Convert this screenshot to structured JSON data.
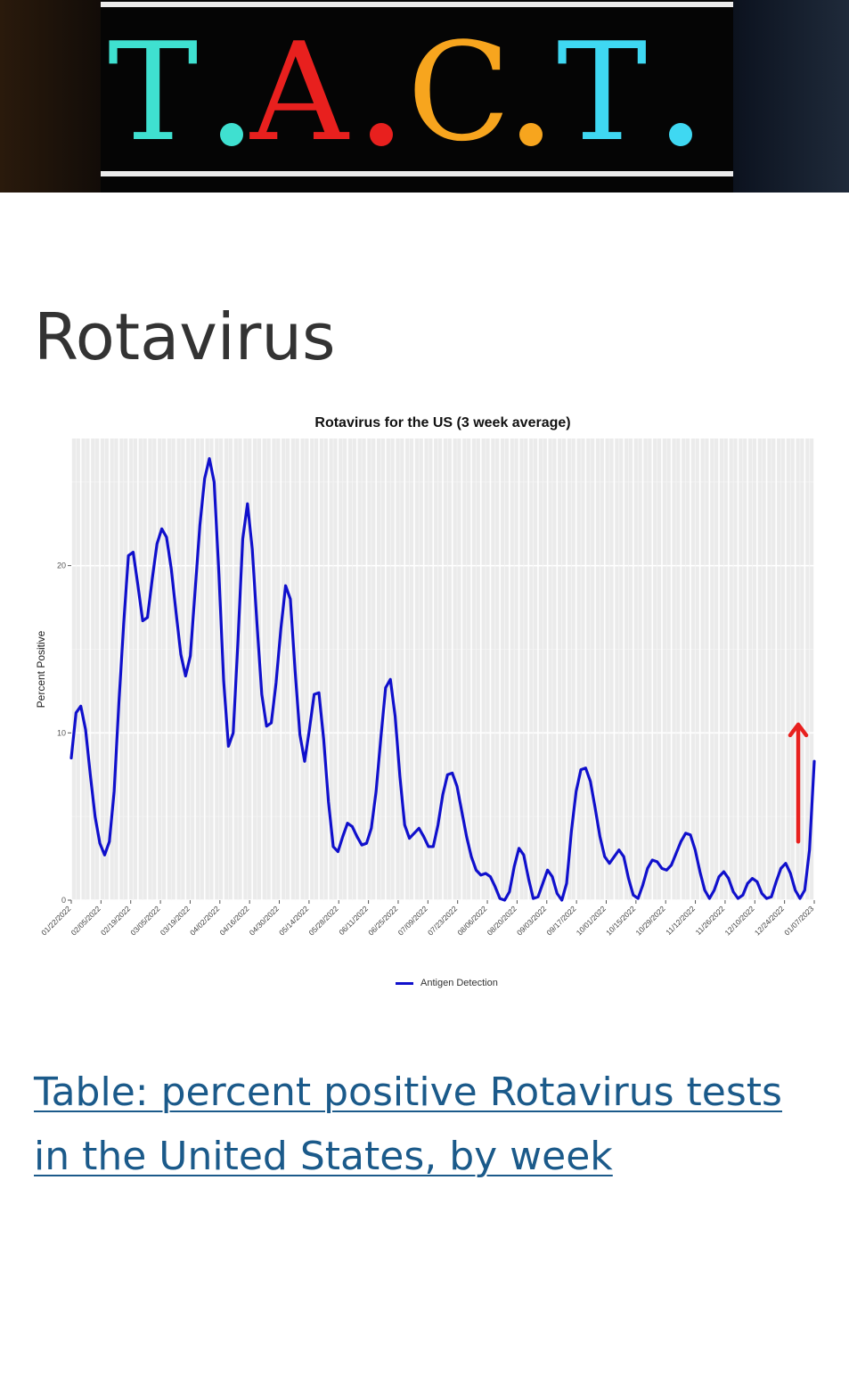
{
  "banner": {
    "logo_text": "T.A.C.T.",
    "letters": [
      {
        "char": "T",
        "color": "#3fe0d0"
      },
      {
        "char": "A",
        "color": "#e8201e"
      },
      {
        "char": "C",
        "color": "#f7a51e"
      },
      {
        "char": "T",
        "color": "#3fd8f2"
      }
    ],
    "dot_colors": [
      "#3fe0d0",
      "#e8201e",
      "#f7a51e",
      "#3fd8f2"
    ]
  },
  "heading": "Rotavirus",
  "chart_data": {
    "type": "line",
    "title": "Rotavirus for the US (3 week average)",
    "ylabel": "Percent Positive",
    "xlabel": "",
    "ylim": [
      0,
      27.6
    ],
    "y_ticks": [
      0,
      10,
      20
    ],
    "y_tick_labels": [
      "0",
      "10",
      "20"
    ],
    "x_tick_labels": [
      "01/22/2022",
      "02/05/2022",
      "02/19/2022",
      "03/05/2022",
      "03/19/2022",
      "04/02/2022",
      "04/16/2022",
      "04/30/2022",
      "05/14/2022",
      "05/28/2022",
      "06/11/2022",
      "06/25/2022",
      "07/09/2022",
      "07/23/2022",
      "08/06/2022",
      "08/20/2022",
      "09/03/2022",
      "09/17/2022",
      "10/01/2022",
      "10/15/2022",
      "10/29/2022",
      "11/12/2022",
      "11/26/2022",
      "12/10/2022",
      "12/24/2022",
      "01/07/2023"
    ],
    "grid": true,
    "legend_position": "bottom",
    "series": [
      {
        "name": "Antigen Detection",
        "color": "#1010cc",
        "values": [
          8.5,
          11.2,
          11.6,
          10.2,
          7.5,
          5.0,
          3.4,
          2.7,
          3.5,
          6.5,
          11.8,
          16.5,
          20.6,
          20.8,
          18.8,
          16.7,
          16.9,
          19.2,
          21.3,
          22.2,
          21.7,
          19.8,
          17.2,
          14.7,
          13.4,
          14.6,
          18.5,
          22.4,
          25.2,
          26.4,
          25.0,
          19.5,
          13.1,
          9.2,
          10.0,
          15.5,
          21.6,
          23.7,
          21.0,
          16.5,
          12.3,
          10.4,
          10.6,
          13.0,
          16.2,
          18.8,
          18.0,
          13.7,
          9.9,
          8.3,
          10.2,
          12.3,
          12.4,
          9.6,
          5.9,
          3.2,
          2.9,
          3.8,
          4.6,
          4.4,
          3.8,
          3.3,
          3.4,
          4.3,
          6.5,
          9.7,
          12.7,
          13.2,
          11.0,
          7.4,
          4.5,
          3.7,
          4.0,
          4.3,
          3.8,
          3.2,
          3.2,
          4.5,
          6.3,
          7.5,
          7.6,
          6.8,
          5.3,
          3.8,
          2.6,
          1.8,
          1.5,
          1.6,
          1.4,
          0.8,
          0.1,
          0.0,
          0.5,
          2.0,
          3.1,
          2.7,
          1.3,
          0.1,
          0.2,
          1.0,
          1.8,
          1.4,
          0.4,
          0.0,
          1.0,
          4.1,
          6.5,
          7.8,
          7.9,
          7.1,
          5.5,
          3.8,
          2.6,
          2.2,
          2.6,
          3.0,
          2.6,
          1.3,
          0.3,
          0.1,
          0.9,
          1.9,
          2.4,
          2.3,
          1.9,
          1.8,
          2.1,
          2.8,
          3.5,
          4.0,
          3.9,
          3.0,
          1.7,
          0.6,
          0.1,
          0.6,
          1.4,
          1.7,
          1.3,
          0.5,
          0.1,
          0.3,
          1.0,
          1.3,
          1.1,
          0.4,
          0.1,
          0.2,
          1.1,
          1.9,
          2.2,
          1.6,
          0.6,
          0.1,
          0.6,
          3.0,
          8.3
        ]
      }
    ],
    "annotations": [
      {
        "type": "arrow",
        "color": "#e8201e",
        "direction": "up",
        "from_y": 3.5,
        "to_y": 10.5,
        "x_near": "01/07/2023"
      }
    ]
  },
  "link": {
    "text": "Table: percent positive Rotavirus tests in the United States, by week",
    "color": "#1b5a8a"
  }
}
